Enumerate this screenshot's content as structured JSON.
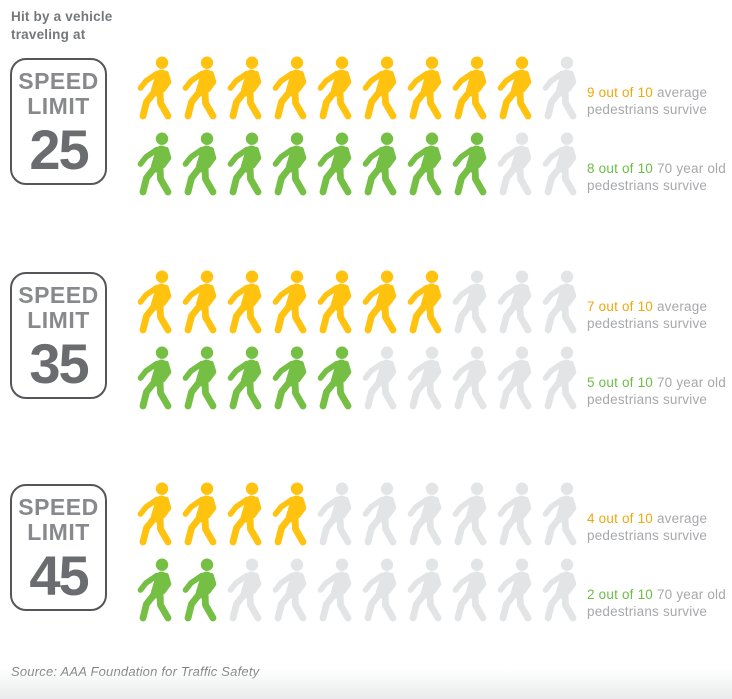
{
  "title": "Hit by a vehicle\ntraveling at",
  "sign": {
    "line1": "SPEED",
    "line2": "LIMIT"
  },
  "source": "Source: AAA Foundation for Traffic Safety",
  "colors": {
    "yellow": "#FFC20E",
    "green": "#74BF44",
    "inactive_gray": "#E3E4E5",
    "yellow_text": "#F0A80C",
    "green_text": "#6CBE45",
    "label_gray": "#A6A8AB"
  },
  "chart_data": {
    "type": "pictogram",
    "title": "Hit by a vehicle traveling at",
    "unit": "pedestrians out of 10",
    "legend_position": "right",
    "sections": [
      {
        "speed_limit": "25",
        "rows": [
          {
            "count": 9,
            "total": 10,
            "group": "average pedestrians",
            "color_key": "yellow",
            "label_value": "9 out of 10",
            "label_rest": " average pedestrians survive"
          },
          {
            "count": 8,
            "total": 10,
            "group": "70 year old pedestrians",
            "color_key": "green",
            "label_value": "8 out of 10",
            "label_rest": " 70 year old pedestrians survive"
          }
        ]
      },
      {
        "speed_limit": "35",
        "rows": [
          {
            "count": 7,
            "total": 10,
            "group": "average pedestrians",
            "color_key": "yellow",
            "label_value": "7 out of 10",
            "label_rest": " average pedestrians survive"
          },
          {
            "count": 5,
            "total": 10,
            "group": "70 year old pedestrians",
            "color_key": "green",
            "label_value": "5 out of 10",
            "label_rest": " 70 year old pedestrians survive"
          }
        ]
      },
      {
        "speed_limit": "45",
        "rows": [
          {
            "count": 4,
            "total": 10,
            "group": "average pedestrians",
            "color_key": "yellow",
            "label_value": "4 out of 10",
            "label_rest": " average pedestrians survive"
          },
          {
            "count": 2,
            "total": 10,
            "group": "70 year old pedestrians",
            "color_key": "green",
            "label_value": "2 out of 10",
            "label_rest": " 70 year old pedestrians survive"
          }
        ]
      }
    ]
  }
}
